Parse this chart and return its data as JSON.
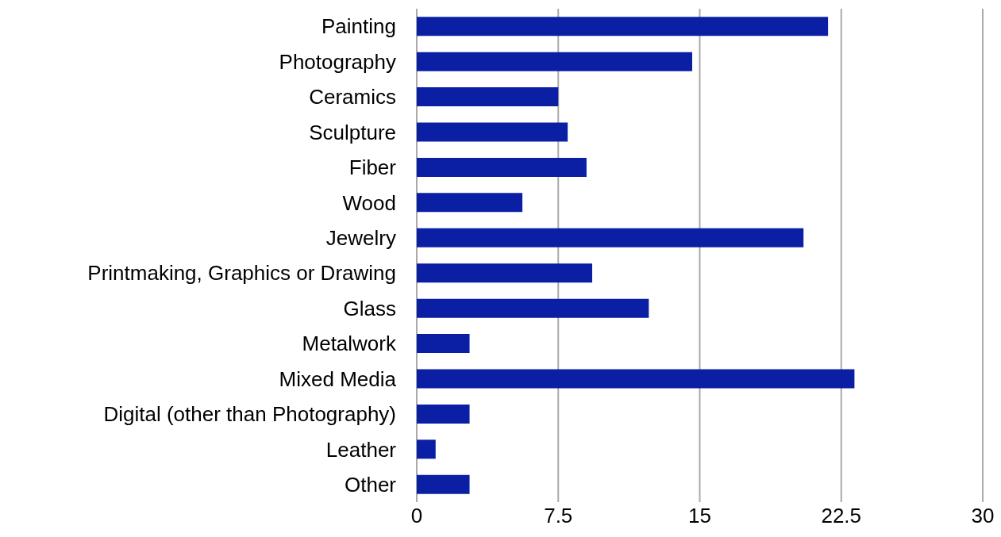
{
  "chart_data": {
    "type": "bar",
    "orientation": "horizontal",
    "categories": [
      "Painting",
      "Photography",
      "Ceramics",
      "Sculpture",
      "Fiber",
      "Wood",
      "Jewelry",
      "Printmaking, Graphics or Drawing",
      "Glass",
      "Metalwork",
      "Mixed Media",
      "Digital (other than Photography)",
      "Leather",
      "Other"
    ],
    "values": [
      21.8,
      14.6,
      7.5,
      8,
      9,
      5.6,
      20.5,
      9.3,
      12.3,
      2.8,
      23.2,
      2.8,
      1,
      2.8
    ],
    "color": "#0b1fa5",
    "xlim": [
      0,
      30
    ],
    "xticks": [
      0,
      7.5,
      15,
      22.5,
      30
    ],
    "grid": "x"
  }
}
